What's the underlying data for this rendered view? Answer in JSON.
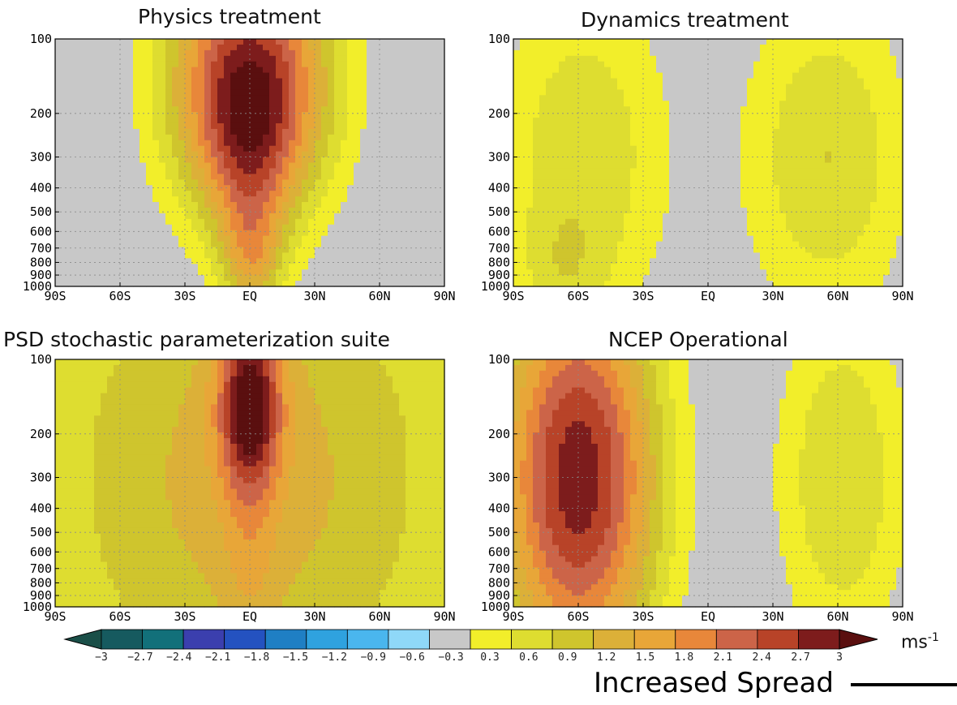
{
  "chart_data": {
    "type": "heatmap",
    "x_ticks": [
      "90S",
      "60S",
      "30S",
      "EQ",
      "30N",
      "60N",
      "90N"
    ],
    "y_ticks": [
      "100",
      "200",
      "300",
      "400",
      "500",
      "600",
      "700",
      "800",
      "900",
      "1000"
    ],
    "y_scale": "log",
    "y_range": [
      1000,
      100
    ],
    "x_range": [
      -90,
      90
    ],
    "grid": true,
    "panels": [
      {
        "title": "Physics treatment",
        "blobs": [
          {
            "lat": 0,
            "p": 155,
            "rx": 38,
            "ry": 0.55,
            "v": 3.0
          },
          {
            "lat": 1,
            "p": 800,
            "rx": 14,
            "ry": 0.22,
            "v": 1.0
          },
          {
            "lat": 0,
            "p": 350,
            "rx": 18,
            "ry": 0.4,
            "v": 0.75
          }
        ],
        "background": -0.1
      },
      {
        "title": "Dynamics treatment",
        "blobs": [
          {
            "lat": -58,
            "p": 300,
            "rx": 42,
            "ry": 0.75,
            "v": 0.95
          },
          {
            "lat": 55,
            "p": 300,
            "rx": 40,
            "ry": 0.7,
            "v": 1.0
          },
          {
            "lat": -68,
            "p": 900,
            "rx": 20,
            "ry": 0.25,
            "v": 0.4
          }
        ],
        "background": -0.1
      },
      {
        "title": "PSD stochastic parameterization suite",
        "blobs": [
          {
            "lat": 0,
            "p": 150,
            "rx": 14,
            "ry": 0.35,
            "v": 2.2
          },
          {
            "lat": 0,
            "p": 300,
            "rx": 95,
            "ry": 1.1,
            "v": 1.0
          },
          {
            "lat": 0,
            "p": 700,
            "rx": 12,
            "ry": 0.4,
            "v": 0.35
          }
        ],
        "background": 0.35
      },
      {
        "title": "NCEP Operational",
        "blobs": [
          {
            "lat": -60,
            "p": 300,
            "rx": 38,
            "ry": 0.85,
            "v": 3.0
          },
          {
            "lat": 62,
            "p": 300,
            "rx": 32,
            "ry": 0.75,
            "v": 1.0
          }
        ],
        "background": -0.1
      }
    ],
    "colorbar": {
      "levels": [
        "−3",
        "−2.7",
        "−2.4",
        "−2.1",
        "−1.8",
        "−1.5",
        "−1.2",
        "−0.9",
        "−0.6",
        "−0.3",
        "0.3",
        "0.6",
        "0.9",
        "1.2",
        "1.5",
        "1.8",
        "2.1",
        "2.4",
        "2.7",
        "3"
      ],
      "colors": [
        "#1a4f48",
        "#165a5f",
        "#12707a",
        "#3b3fae",
        "#2452c0",
        "#1f7fc4",
        "#2fa2df",
        "#4ab6ee",
        "#8fd8f8",
        "#c8c8c8",
        "#f2ee2a",
        "#dedd30",
        "#cfc52d",
        "#dcb038",
        "#e8a638",
        "#e8873a",
        "#cc6448",
        "#b84328",
        "#7d1c1c",
        "#5a0f0f"
      ],
      "unit": "ms",
      "unit_exp": "-1"
    },
    "annotation": "Increased Spread"
  }
}
